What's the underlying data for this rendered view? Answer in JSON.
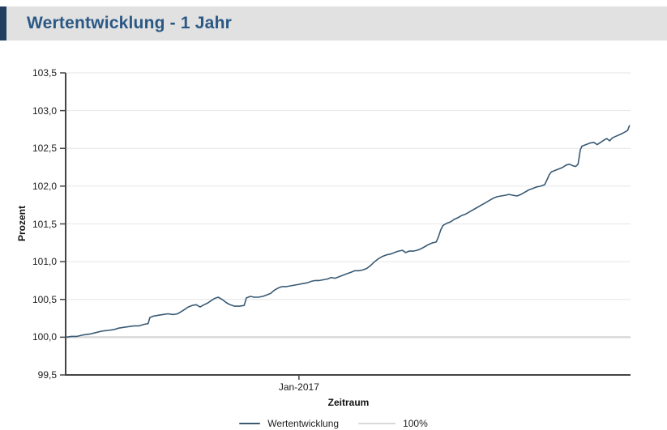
{
  "header": {
    "title": "Wertentwicklung - 1 Jahr"
  },
  "colors": {
    "accent_bar": "#233f5f",
    "header_bg": "#e1e1e1",
    "title_text": "#2a5885",
    "series_line": "#395a74",
    "gridline": "#e6e6e6",
    "baseline_line": "#d9d9d9",
    "axis": "#444444"
  },
  "chart_data": {
    "type": "line",
    "title": "Wertentwicklung - 1 Jahr",
    "xlabel": "Zeitraum",
    "ylabel": "Prozent",
    "ylim": [
      99.5,
      103.5
    ],
    "grid": true,
    "legend_position": "bottom",
    "yticks": [
      {
        "value": 99.5,
        "label": "99,5"
      },
      {
        "value": 100.0,
        "label": "100,0"
      },
      {
        "value": 100.5,
        "label": "100,5"
      },
      {
        "value": 101.0,
        "label": "101,0"
      },
      {
        "value": 101.5,
        "label": "101,5"
      },
      {
        "value": 102.0,
        "label": "102,0"
      },
      {
        "value": 102.5,
        "label": "102,5"
      },
      {
        "value": 103.0,
        "label": "103,0"
      },
      {
        "value": 103.5,
        "label": "103,5"
      }
    ],
    "xticks": [
      {
        "position": 0.413,
        "label": "Jan-2017"
      }
    ],
    "baseline": {
      "value": 100.0,
      "label": "100%",
      "color": "#d9d9d9"
    },
    "legend": [
      {
        "label": "Wertentwicklung",
        "swatch": "#395a74",
        "swatch_width": 26
      },
      {
        "label": "100%",
        "swatch": "#d9d9d9",
        "swatch_width": 46
      }
    ],
    "series": [
      {
        "name": "Wertentwicklung",
        "color": "#395a74",
        "points": [
          [
            0.001,
            100.0
          ],
          [
            0.01,
            100.01
          ],
          [
            0.02,
            100.01
          ],
          [
            0.031,
            100.03
          ],
          [
            0.042,
            100.04
          ],
          [
            0.053,
            100.06
          ],
          [
            0.064,
            100.08
          ],
          [
            0.075,
            100.09
          ],
          [
            0.085,
            100.1
          ],
          [
            0.094,
            100.12
          ],
          [
            0.102,
            100.13
          ],
          [
            0.112,
            100.14
          ],
          [
            0.121,
            100.15
          ],
          [
            0.13,
            100.15
          ],
          [
            0.139,
            100.17
          ],
          [
            0.146,
            100.18
          ],
          [
            0.149,
            100.26
          ],
          [
            0.156,
            100.28
          ],
          [
            0.164,
            100.29
          ],
          [
            0.172,
            100.3
          ],
          [
            0.181,
            100.31
          ],
          [
            0.191,
            100.3
          ],
          [
            0.198,
            100.31
          ],
          [
            0.205,
            100.34
          ],
          [
            0.211,
            100.37
          ],
          [
            0.217,
            100.4
          ],
          [
            0.224,
            100.42
          ],
          [
            0.231,
            100.43
          ],
          [
            0.238,
            100.4
          ],
          [
            0.245,
            100.43
          ],
          [
            0.251,
            100.45
          ],
          [
            0.257,
            100.48
          ],
          [
            0.263,
            100.51
          ],
          [
            0.27,
            100.53
          ],
          [
            0.277,
            100.5
          ],
          [
            0.284,
            100.46
          ],
          [
            0.291,
            100.43
          ],
          [
            0.299,
            100.41
          ],
          [
            0.308,
            100.41
          ],
          [
            0.316,
            100.42
          ],
          [
            0.32,
            100.52
          ],
          [
            0.327,
            100.54
          ],
          [
            0.334,
            100.53
          ],
          [
            0.341,
            100.53
          ],
          [
            0.349,
            100.54
          ],
          [
            0.356,
            100.56
          ],
          [
            0.363,
            100.58
          ],
          [
            0.369,
            100.62
          ],
          [
            0.376,
            100.65
          ],
          [
            0.383,
            100.67
          ],
          [
            0.391,
            100.67
          ],
          [
            0.398,
            100.68
          ],
          [
            0.406,
            100.69
          ],
          [
            0.413,
            100.7
          ],
          [
            0.42,
            100.71
          ],
          [
            0.428,
            100.72
          ],
          [
            0.435,
            100.74
          ],
          [
            0.442,
            100.75
          ],
          [
            0.449,
            100.75
          ],
          [
            0.456,
            100.76
          ],
          [
            0.463,
            100.77
          ],
          [
            0.47,
            100.79
          ],
          [
            0.477,
            100.78
          ],
          [
            0.484,
            100.8
          ],
          [
            0.491,
            100.82
          ],
          [
            0.498,
            100.84
          ],
          [
            0.505,
            100.86
          ],
          [
            0.512,
            100.88
          ],
          [
            0.519,
            100.88
          ],
          [
            0.526,
            100.89
          ],
          [
            0.533,
            100.91
          ],
          [
            0.54,
            100.95
          ],
          [
            0.547,
            101.0
          ],
          [
            0.554,
            101.04
          ],
          [
            0.561,
            101.07
          ],
          [
            0.568,
            101.09
          ],
          [
            0.575,
            101.1
          ],
          [
            0.582,
            101.12
          ],
          [
            0.589,
            101.14
          ],
          [
            0.596,
            101.15
          ],
          [
            0.602,
            101.12
          ],
          [
            0.608,
            101.14
          ],
          [
            0.615,
            101.14
          ],
          [
            0.622,
            101.15
          ],
          [
            0.629,
            101.17
          ],
          [
            0.636,
            101.2
          ],
          [
            0.643,
            101.23
          ],
          [
            0.65,
            101.25
          ],
          [
            0.656,
            101.26
          ],
          [
            0.66,
            101.33
          ],
          [
            0.664,
            101.42
          ],
          [
            0.668,
            101.48
          ],
          [
            0.675,
            101.51
          ],
          [
            0.682,
            101.53
          ],
          [
            0.688,
            101.56
          ],
          [
            0.694,
            101.58
          ],
          [
            0.701,
            101.61
          ],
          [
            0.708,
            101.63
          ],
          [
            0.715,
            101.66
          ],
          [
            0.722,
            101.69
          ],
          [
            0.729,
            101.72
          ],
          [
            0.736,
            101.75
          ],
          [
            0.743,
            101.78
          ],
          [
            0.75,
            101.81
          ],
          [
            0.757,
            101.84
          ],
          [
            0.764,
            101.86
          ],
          [
            0.771,
            101.87
          ],
          [
            0.778,
            101.88
          ],
          [
            0.785,
            101.89
          ],
          [
            0.792,
            101.88
          ],
          [
            0.799,
            101.87
          ],
          [
            0.806,
            101.89
          ],
          [
            0.813,
            101.92
          ],
          [
            0.82,
            101.95
          ],
          [
            0.827,
            101.97
          ],
          [
            0.834,
            101.99
          ],
          [
            0.841,
            102.0
          ],
          [
            0.848,
            102.02
          ],
          [
            0.852,
            102.08
          ],
          [
            0.856,
            102.15
          ],
          [
            0.86,
            102.19
          ],
          [
            0.867,
            102.21
          ],
          [
            0.874,
            102.23
          ],
          [
            0.88,
            102.25
          ],
          [
            0.886,
            102.28
          ],
          [
            0.892,
            102.29
          ],
          [
            0.898,
            102.27
          ],
          [
            0.903,
            102.26
          ],
          [
            0.907,
            102.29
          ],
          [
            0.909,
            102.38
          ],
          [
            0.911,
            102.48
          ],
          [
            0.914,
            102.53
          ],
          [
            0.921,
            102.55
          ],
          [
            0.928,
            102.57
          ],
          [
            0.935,
            102.58
          ],
          [
            0.941,
            102.55
          ],
          [
            0.947,
            102.58
          ],
          [
            0.953,
            102.61
          ],
          [
            0.958,
            102.63
          ],
          [
            0.963,
            102.6
          ],
          [
            0.968,
            102.64
          ],
          [
            0.974,
            102.66
          ],
          [
            0.98,
            102.68
          ],
          [
            0.986,
            102.7
          ],
          [
            0.991,
            102.72
          ],
          [
            0.995,
            102.74
          ],
          [
            0.998,
            102.8
          ]
        ]
      }
    ]
  }
}
